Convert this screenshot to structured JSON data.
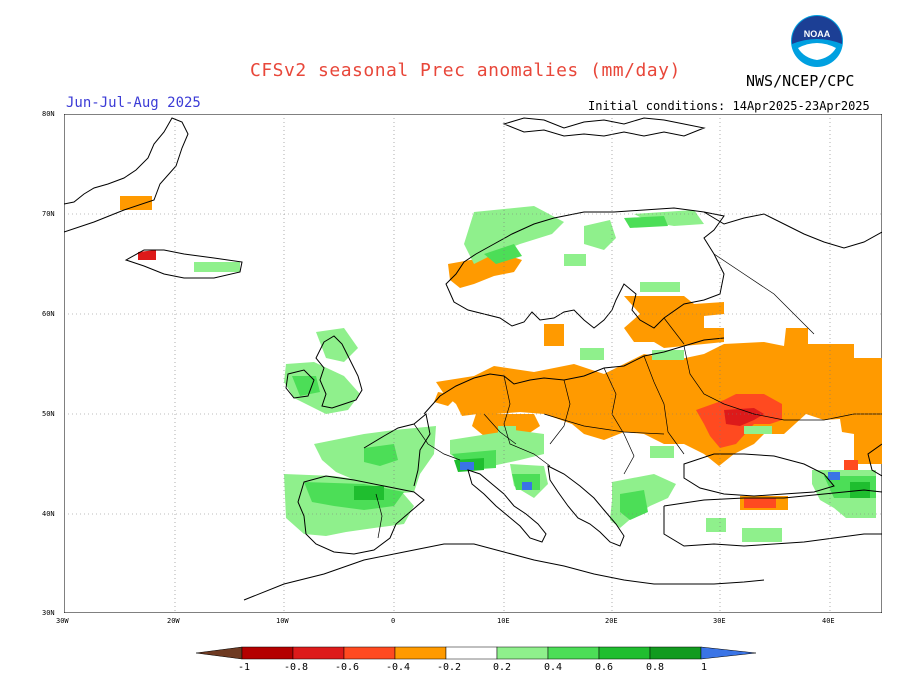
{
  "header": {
    "title": "CFSv2 seasonal Prec anomalies (mm/day)",
    "agency": "NWS/NCEP/CPC",
    "season": "Jun-Jul-Aug 2025",
    "initial_conditions": "Initial conditions: 14Apr2025-23Apr2025"
  },
  "logo": {
    "icon": "noaa-logo",
    "text": "NOAA"
  },
  "axes": {
    "lat_labels": [
      "80N",
      "70N",
      "60N",
      "50N",
      "40N",
      "30N"
    ],
    "lon_labels": [
      "30W",
      "20W",
      "10W",
      "0",
      "10E",
      "20E",
      "30E",
      "40E"
    ]
  },
  "colorbar": {
    "labels": [
      "-1",
      "-0.8",
      "-0.6",
      "-0.4",
      "-0.2",
      "0.2",
      "0.4",
      "0.6",
      "0.8",
      "1"
    ],
    "colors": [
      "#6e3a22",
      "#b40000",
      "#dd1a1a",
      "#ff4a20",
      "#ff9a00",
      "#ffffff",
      "#8ff08c",
      "#4cde57",
      "#1fbe2f",
      "#129b1f",
      "#3a74e6"
    ]
  },
  "colors": {
    "dry_strong": "#dd1a1a",
    "dry_moderate": "#ff4a20",
    "dry": "#ff9a00",
    "wet": "#8ff08c",
    "wet_moderate": "#4cde57",
    "wet_strong": "#1fbe2f",
    "wet_max": "#3a74e6",
    "land_outline": "#000000",
    "grid": "#7a7a7a",
    "title": "#e8473a",
    "season": "#3b3bd6"
  }
}
